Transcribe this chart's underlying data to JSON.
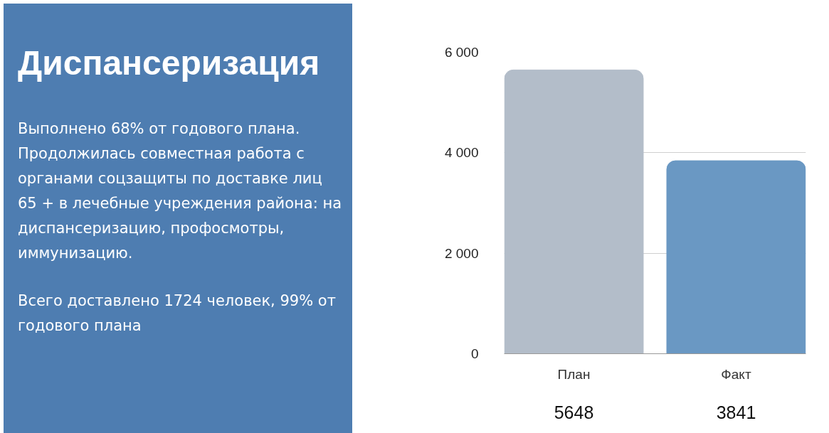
{
  "chart_data": {
    "type": "bar",
    "title": "Диспансеризация",
    "annotations": [
      "Выполнено 68% от годового плана. Продолжилась совместная работа с органами соцзащиты по доставке лиц 65 + в лечебные учреждения района: на диспансеризацию, профосмотры, иммунизацию.",
      "Всего доставлено 1724 человек, 99% от годового плана"
    ],
    "categories": [
      "План",
      "Факт"
    ],
    "values": [
      5648,
      3841
    ],
    "colors": [
      "#b3bdc9",
      "#6a98c3"
    ],
    "ylim": [
      0,
      6000
    ],
    "yticks": [
      0,
      {
        "value": 2000,
        "label": "2 000"
      },
      {
        "value": 4000,
        "label": "4 000"
      },
      {
        "value": 6000,
        "label": "6 000"
      }
    ],
    "grid": "y",
    "data_labels": true
  }
}
